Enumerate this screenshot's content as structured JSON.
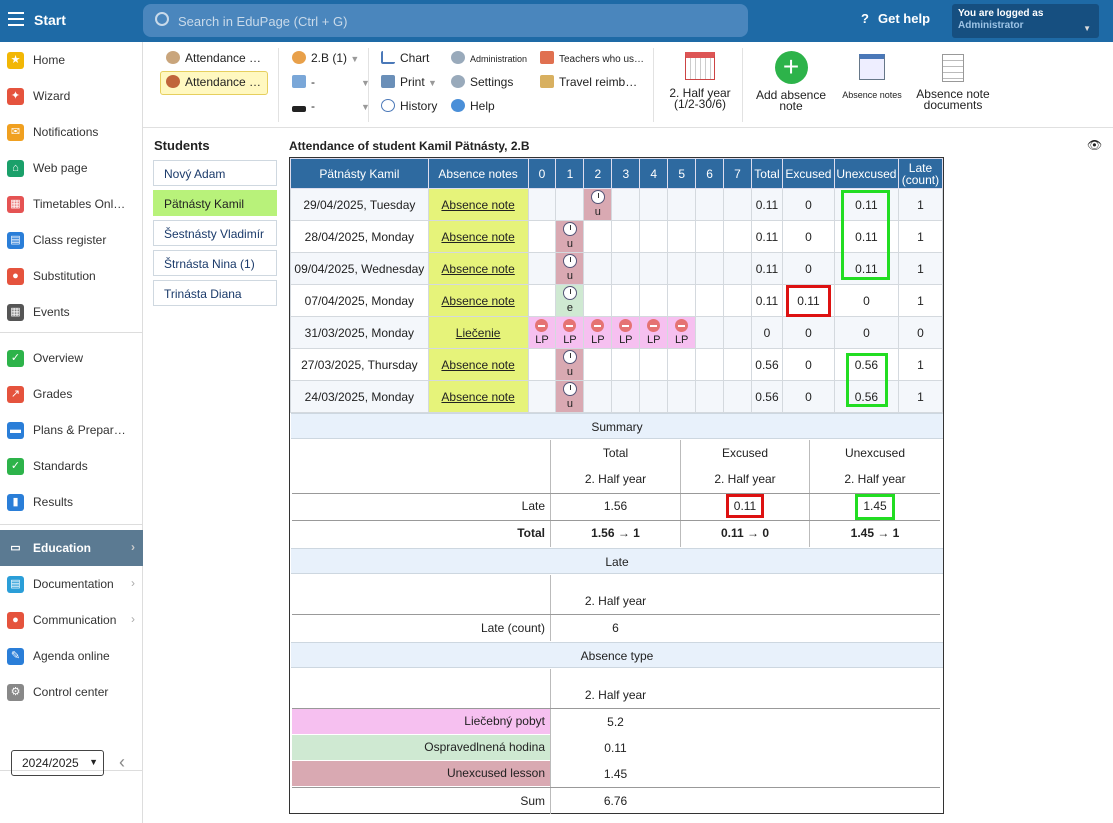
{
  "topbar": {
    "start": "Start",
    "search_placeholder": "Search in EduPage (Ctrl + G)",
    "help": "Get help",
    "logged_as": "You are logged as",
    "user": "Administrator"
  },
  "sidebar": {
    "items": [
      {
        "label": "Home",
        "icon": "star-icon",
        "color": "#f2b705"
      },
      {
        "label": "Wizard",
        "icon": "wand-icon",
        "color": "#e5533d"
      },
      {
        "label": "Notifications",
        "icon": "envelope-icon",
        "color": "#f0a020"
      },
      {
        "label": "Web page",
        "icon": "house-icon",
        "color": "#1aa06a"
      },
      {
        "label": "Timetables Onl…",
        "icon": "grid-icon",
        "color": "#e55353"
      },
      {
        "label": "Class register",
        "icon": "book-icon",
        "color": "#2a7ed8"
      },
      {
        "label": "Substitution",
        "icon": "person-icon",
        "color": "#e5533d"
      },
      {
        "label": "Events",
        "icon": "calendar-icon",
        "color": "#555"
      },
      {
        "label": "Overview",
        "icon": "check-circle-icon",
        "color": "#2db34a"
      },
      {
        "label": "Grades",
        "icon": "chart-icon",
        "color": "#e5533d"
      },
      {
        "label": "Plans & Prepar…",
        "icon": "briefcase-icon",
        "color": "#2a7ed8"
      },
      {
        "label": "Standards",
        "icon": "shield-icon",
        "color": "#2db34a"
      },
      {
        "label": "Results",
        "icon": "bar-chart-icon",
        "color": "#2a7ed8"
      },
      {
        "label": "Education",
        "icon": "open-book-icon",
        "color": "#ffffff"
      },
      {
        "label": "Documentation",
        "icon": "document-icon",
        "color": "#2a9ed8"
      },
      {
        "label": "Communication",
        "icon": "chat-icon",
        "color": "#e5533d"
      },
      {
        "label": "Agenda online",
        "icon": "pen-icon",
        "color": "#2a7ed8"
      },
      {
        "label": "Control center",
        "icon": "gear-icon",
        "color": "#888"
      }
    ],
    "year": "2024/2025"
  },
  "toolbar": {
    "att1": "Attendance …",
    "att2": "Attendance …",
    "class": "2.B (1)",
    "dash1": "-",
    "dash2": "-",
    "chart": "Chart",
    "print": "Print",
    "history": "History",
    "admin": "Administration",
    "settings": "Settings",
    "help": "Help",
    "teachers": "Teachers who us…",
    "travel": "Travel reimb…",
    "period1": "2. Half year",
    "period2": "(1/2-30/6)",
    "add1": "Add absence",
    "add2": "note",
    "absnotes": "Absence notes",
    "docs1": "Absence note",
    "docs2": "documents"
  },
  "students": {
    "title": "Students",
    "list": [
      "Nový Adam",
      "Pätnásty Kamil",
      "Šestnásty Vladimír",
      "Štrnásta Nina (1)",
      "Trinásta Diana"
    ]
  },
  "heading": "Attendance of student Kamil Pätnásty, 2.B",
  "table": {
    "headers": [
      "Pätnásty Kamil",
      "Absence notes",
      "0",
      "1",
      "2",
      "3",
      "4",
      "5",
      "6",
      "7",
      "Total",
      "Excused",
      "Unexcused",
      "Late",
      "(count)"
    ],
    "rows": [
      {
        "date": "29/04/2025, Tuesday",
        "note": "Absence note",
        "total": "0.11",
        "exc": "0",
        "unexc": "0.11",
        "late": "1"
      },
      {
        "date": "28/04/2025, Monday",
        "note": "Absence note",
        "total": "0.11",
        "exc": "0",
        "unexc": "0.11",
        "late": "1"
      },
      {
        "date": "09/04/2025, Wednesday",
        "note": "Absence note",
        "total": "0.11",
        "exc": "0",
        "unexc": "0.11",
        "late": "1"
      },
      {
        "date": "07/04/2025, Monday",
        "note": "Absence note",
        "total": "0.11",
        "exc": "0.11",
        "unexc": "0",
        "late": "1"
      },
      {
        "date": "31/03/2025, Monday",
        "note": "Liečenie",
        "total": "0",
        "exc": "0",
        "unexc": "0",
        "late": "0"
      },
      {
        "date": "27/03/2025, Thursday",
        "note": "Absence note",
        "total": "0.56",
        "exc": "0",
        "unexc": "0.56",
        "late": "1"
      },
      {
        "date": "24/03/2025, Monday",
        "note": "Absence note",
        "total": "0.56",
        "exc": "0",
        "unexc": "0.56",
        "late": "1"
      }
    ],
    "mark_u": "u",
    "mark_e": "e",
    "mark_lp": "LP"
  },
  "summary": {
    "title": "Summary",
    "total": "Total",
    "excused": "Excused",
    "unexcused": "Unexcused",
    "period": "2. Half year",
    "late_label": "Late",
    "late_total": "1.56",
    "late_exc": "0.11",
    "late_unexc": "1.45",
    "total_label": "Total",
    "tot_total": "1.56 → 1",
    "tot_exc": "0.11 → 0",
    "tot_unexc": "1.45 → 1"
  },
  "late": {
    "title": "Late",
    "period": "2. Half year",
    "count_label": "Late (count)",
    "count": "6"
  },
  "abstype": {
    "title": "Absence type",
    "period": "2. Half year",
    "rows": [
      {
        "label": "Liečebný pobyt",
        "value": "5.2",
        "color": "#f6c0f0"
      },
      {
        "label": "Ospravedlnená hodina",
        "value": "0.11",
        "color": "#cfe9d2"
      },
      {
        "label": "Unexcused lesson",
        "value": "1.45",
        "color": "#d9a9b2"
      }
    ],
    "sum_label": "Sum",
    "sum": "6.76"
  }
}
